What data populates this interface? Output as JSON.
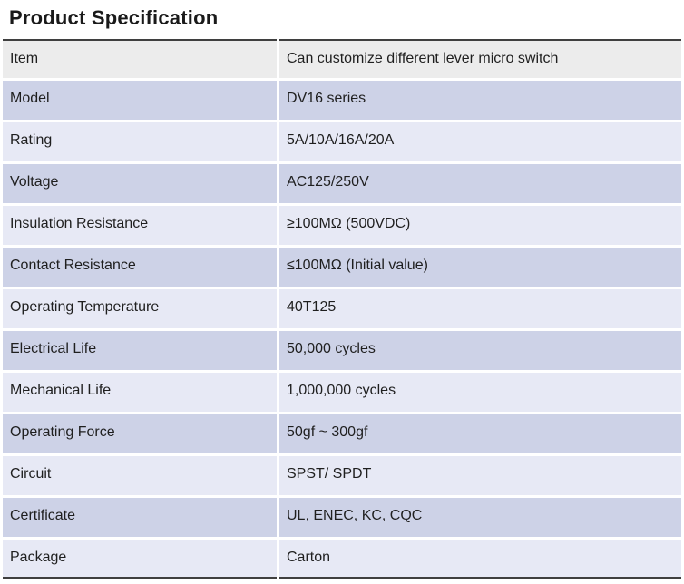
{
  "page": {
    "title": "Product Specification"
  },
  "table": {
    "colors": {
      "header_row_bg": "#ececec",
      "row_bg_dark": "#cdd2e7",
      "row_bg_light": "#e7e9f5",
      "border": "#3f3f3f",
      "text": "#1f1f1f"
    },
    "rows": [
      {
        "label": "Item",
        "value": "Can customize different lever micro switch"
      },
      {
        "label": "Model",
        "value": "DV16 series"
      },
      {
        "label": "Rating",
        "value": "5A/10A/16A/20A"
      },
      {
        "label": "Voltage",
        "value": "AC125/250V"
      },
      {
        "label": "Insulation Resistance",
        "value": "≥100MΩ (500VDC)"
      },
      {
        "label": "Contact Resistance",
        "value": "≤100MΩ (Initial value)"
      },
      {
        "label": "Operating Temperature",
        "value": "40T125"
      },
      {
        "label": "Electrical Life",
        "value": "50,000 cycles"
      },
      {
        "label": "Mechanical Life",
        "value": "1,000,000 cycles"
      },
      {
        "label": "Operating Force",
        "value": "50gf ~ 300gf"
      },
      {
        "label": "Circuit",
        "value": "SPST/ SPDT"
      },
      {
        "label": "Certificate",
        "value": "UL, ENEC, KC, CQC"
      },
      {
        "label": "Package",
        "value": "Carton"
      }
    ]
  }
}
